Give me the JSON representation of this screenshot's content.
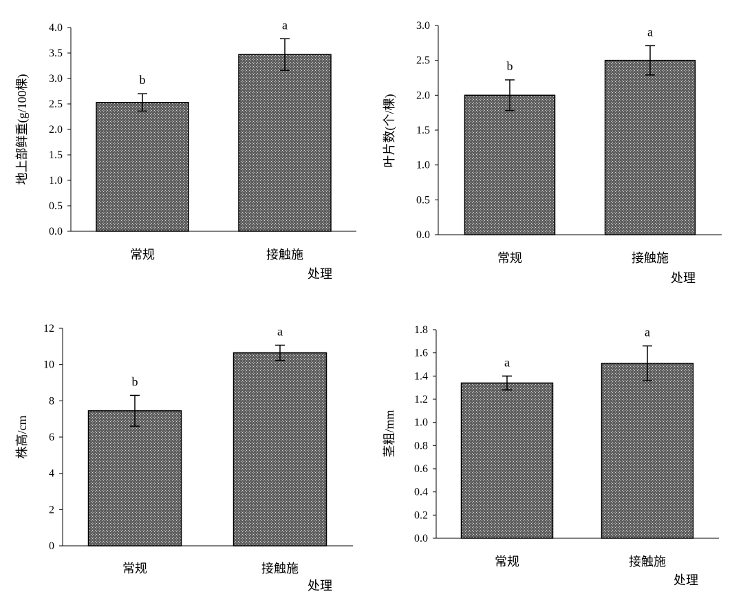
{
  "pattern_colors": {
    "bar_fill": "#5f5f5f",
    "bar_dot": "#d9d9d9",
    "bar_stroke": "#000000"
  },
  "chart_data": [
    {
      "type": "bar",
      "ylabel": "地上部鲜重(g/100棵)",
      "xlabel": "处理",
      "categories": [
        "常规",
        "接触施"
      ],
      "values": [
        2.53,
        3.47
      ],
      "errors": [
        0.17,
        0.31
      ],
      "significance": [
        "b",
        "a"
      ],
      "ylim": [
        0,
        4.0
      ],
      "yticks": [
        "0.0",
        "0.5",
        "1.0",
        "1.5",
        "2.0",
        "2.5",
        "3.0",
        "3.5",
        "4.0"
      ]
    },
    {
      "type": "bar",
      "ylabel": "叶片数(个/棵)",
      "xlabel": "处理",
      "categories": [
        "常规",
        "接触施"
      ],
      "values": [
        2.0,
        2.5
      ],
      "errors": [
        0.22,
        0.21
      ],
      "significance": [
        "b",
        "a"
      ],
      "ylim": [
        0,
        3.0
      ],
      "yticks": [
        "0.0",
        "0.5",
        "1.0",
        "1.5",
        "2.0",
        "2.5",
        "3.0"
      ]
    },
    {
      "type": "bar",
      "ylabel": "株高/cm",
      "xlabel": "处理",
      "categories": [
        "常规",
        "接触施"
      ],
      "values": [
        7.45,
        10.65
      ],
      "errors": [
        0.85,
        0.42
      ],
      "significance": [
        "b",
        "a"
      ],
      "ylim": [
        0,
        12
      ],
      "yticks": [
        "0",
        "2",
        "4",
        "6",
        "8",
        "10",
        "12"
      ]
    },
    {
      "type": "bar",
      "ylabel": "茎粗/mm",
      "xlabel": "处理",
      "categories": [
        "常规",
        "接触施"
      ],
      "values": [
        1.34,
        1.51
      ],
      "errors": [
        0.06,
        0.15
      ],
      "significance": [
        "a",
        "a"
      ],
      "ylim": [
        0,
        1.8
      ],
      "yticks": [
        "0.0",
        "0.2",
        "0.4",
        "0.6",
        "0.8",
        "1.0",
        "1.2",
        "1.4",
        "1.6",
        "1.8"
      ]
    }
  ]
}
